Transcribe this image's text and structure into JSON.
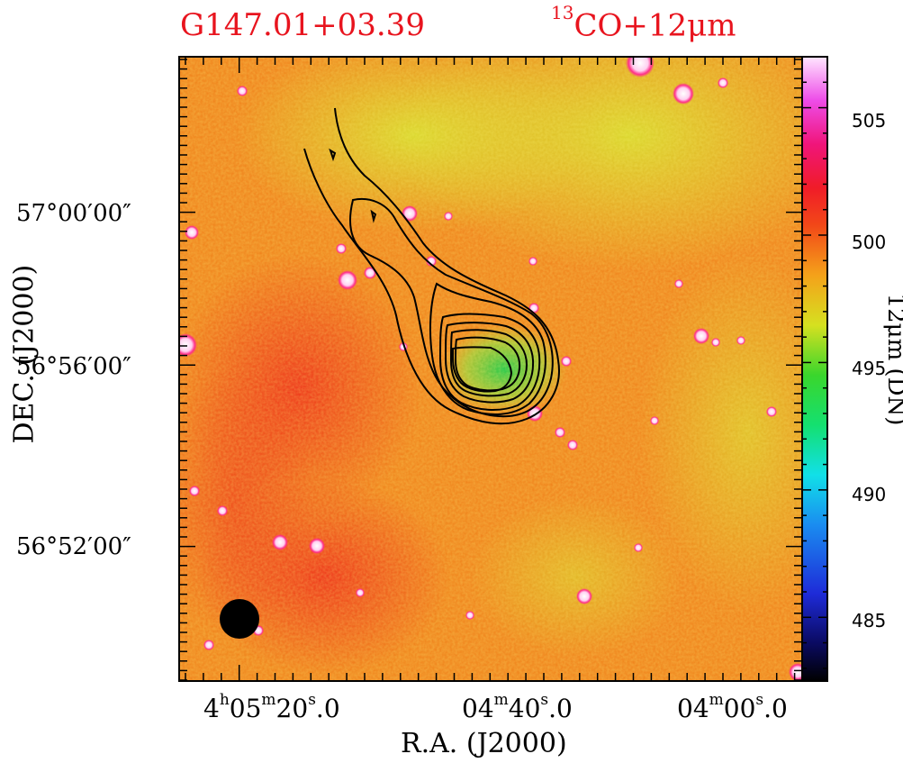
{
  "chart_data": {
    "type": "heatmap",
    "title_left": "G147.01+03.39",
    "title_right": {
      "sup": "13",
      "main": "CO+12μm"
    },
    "xlabel": "R.A. (J2000)",
    "ylabel": "DEC. (J2000)",
    "colorbar_label": "12μm (DN)",
    "colorbar_ticks": [
      "505",
      "500",
      "495",
      "490",
      "485"
    ],
    "colorbar_range": [
      482.5,
      507
    ],
    "x_ticks": [
      {
        "h": "4",
        "m": "05",
        "s": "20",
        "frac": "0"
      },
      {
        "m": "04",
        "s": "40",
        "frac": "0"
      },
      {
        "m": "04",
        "s": "00",
        "frac": "0"
      }
    ],
    "y_ticks": [
      "57°00′00″",
      "56°56′00″",
      "56°52′00″"
    ],
    "contour_levels": 8,
    "colors": {
      "title": "#e8141e",
      "background_map": "#f25a1e",
      "contour": "#000000"
    }
  }
}
